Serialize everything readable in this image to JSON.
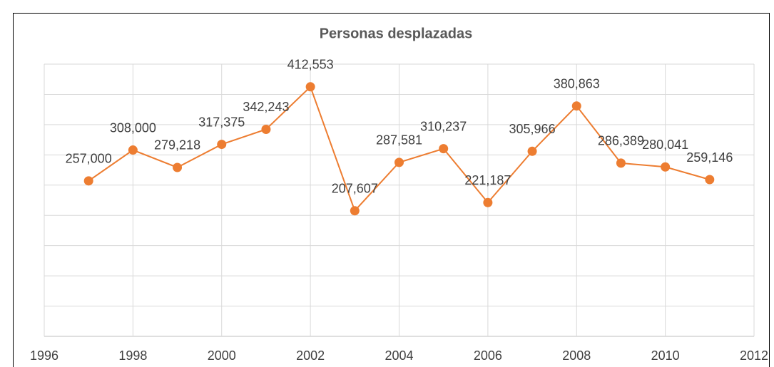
{
  "chart_data": {
    "type": "line",
    "title": "Personas desplazadas",
    "x": [
      1997,
      1998,
      1999,
      2000,
      2001,
      2002,
      2003,
      2004,
      2005,
      2006,
      2007,
      2008,
      2009,
      2010,
      2011
    ],
    "series": [
      {
        "name": "Personas desplazadas",
        "color": "#ed7d31",
        "values": [
          257000,
          308000,
          279218,
          317375,
          342243,
          412553,
          207607,
          287581,
          310237,
          221187,
          305966,
          380863,
          286389,
          280041,
          259146
        ],
        "value_labels": [
          "257,000",
          "308,000",
          "279,218",
          "317,375",
          "342,243",
          "412,553",
          "207,607",
          "287,581",
          "310,237",
          "221,187",
          "305,966",
          "380,863",
          "286,389",
          "280,041",
          "259,146"
        ]
      }
    ],
    "xlim": [
      1996,
      2012
    ],
    "xticks": [
      1996,
      1998,
      2000,
      2002,
      2004,
      2006,
      2008,
      2010,
      2012
    ],
    "ylim": [
      0,
      450000
    ],
    "yticks": [
      0,
      50000,
      100000,
      150000,
      200000,
      250000,
      300000,
      350000,
      400000,
      450000
    ],
    "grid": true
  }
}
